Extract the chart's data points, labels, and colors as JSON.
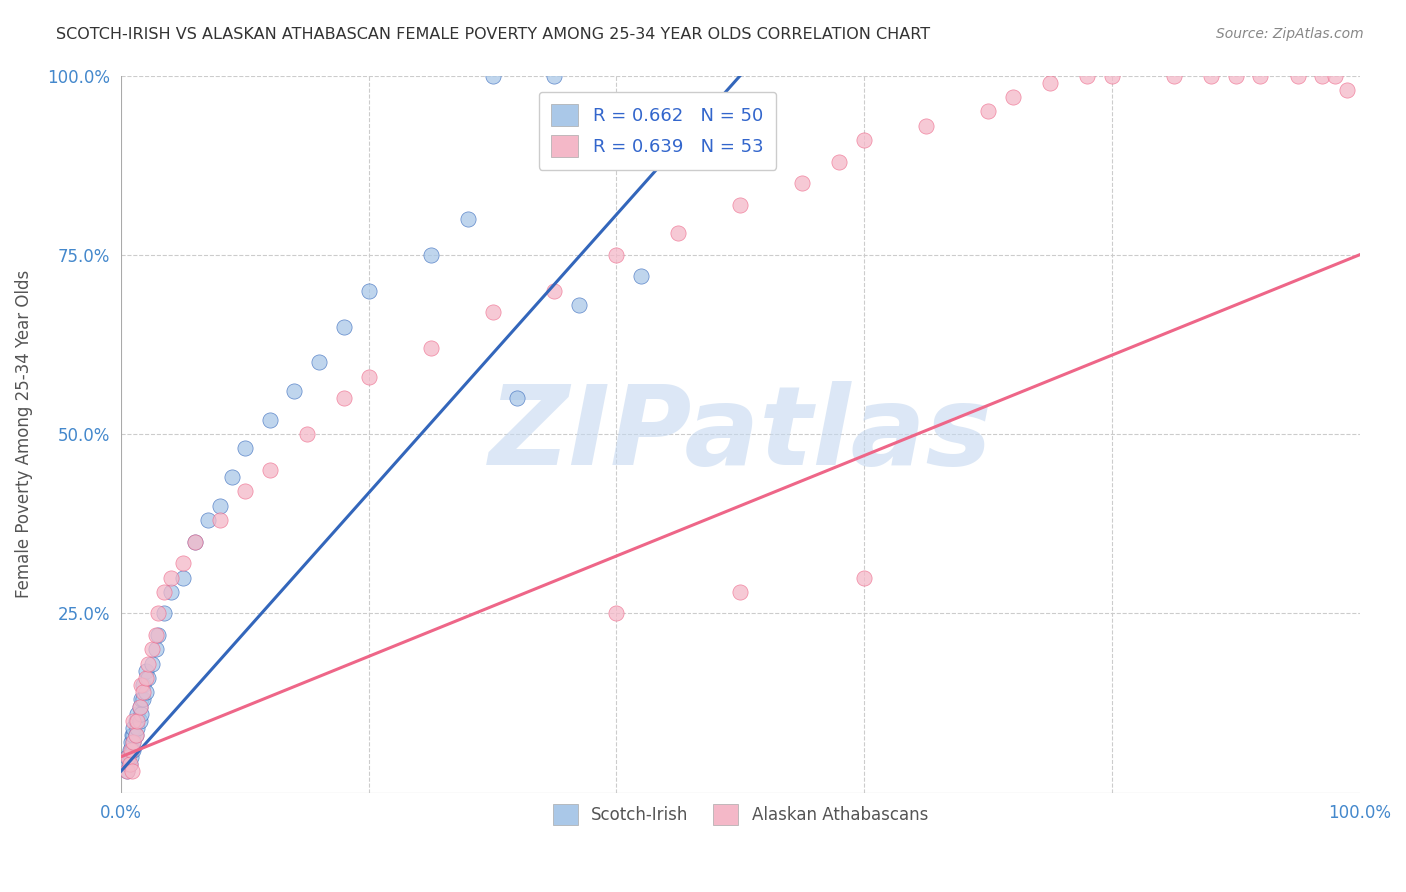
{
  "title": "SCOTCH-IRISH VS ALASKAN ATHABASCAN FEMALE POVERTY AMONG 25-34 YEAR OLDS CORRELATION CHART",
  "source": "Source: ZipAtlas.com",
  "ylabel": "Female Poverty Among 25-34 Year Olds",
  "xlim": [
    0,
    1.0
  ],
  "ylim": [
    0,
    1.0
  ],
  "watermark": "ZIPatlas",
  "blue_color": "#aac8e8",
  "pink_color": "#f4b8c8",
  "blue_line_color": "#3366bb",
  "pink_line_color": "#ee6688",
  "background_color": "#ffffff",
  "grid_color": "#cccccc",
  "watermark_color": "#c5d8f0",
  "title_color": "#333333",
  "axis_label_color": "#4488cc",
  "blue_scatter_x": [
    0.005,
    0.005,
    0.005,
    0.007,
    0.007,
    0.008,
    0.008,
    0.009,
    0.009,
    0.01,
    0.01,
    0.01,
    0.01,
    0.012,
    0.012,
    0.013,
    0.013,
    0.015,
    0.015,
    0.016,
    0.016,
    0.018,
    0.018,
    0.02,
    0.02,
    0.022,
    0.025,
    0.028,
    0.03,
    0.035,
    0.04,
    0.05,
    0.06,
    0.07,
    0.08,
    0.09,
    0.1,
    0.12,
    0.14,
    0.16,
    0.18,
    0.2,
    0.25,
    0.28,
    0.32,
    0.37,
    0.42,
    0.48,
    0.35,
    0.3
  ],
  "blue_scatter_y": [
    0.03,
    0.04,
    0.05,
    0.04,
    0.06,
    0.05,
    0.07,
    0.06,
    0.08,
    0.06,
    0.07,
    0.08,
    0.09,
    0.08,
    0.1,
    0.09,
    0.11,
    0.1,
    0.12,
    0.11,
    0.13,
    0.13,
    0.15,
    0.14,
    0.17,
    0.16,
    0.18,
    0.2,
    0.22,
    0.25,
    0.28,
    0.3,
    0.35,
    0.38,
    0.4,
    0.44,
    0.48,
    0.52,
    0.56,
    0.6,
    0.65,
    0.7,
    0.75,
    0.8,
    0.55,
    0.68,
    0.72,
    0.88,
    1.0,
    1.0
  ],
  "pink_scatter_x": [
    0.005,
    0.006,
    0.007,
    0.008,
    0.009,
    0.01,
    0.01,
    0.012,
    0.013,
    0.015,
    0.016,
    0.018,
    0.02,
    0.022,
    0.025,
    0.028,
    0.03,
    0.035,
    0.04,
    0.05,
    0.06,
    0.08,
    0.1,
    0.12,
    0.15,
    0.18,
    0.2,
    0.25,
    0.3,
    0.35,
    0.4,
    0.45,
    0.5,
    0.55,
    0.58,
    0.6,
    0.65,
    0.7,
    0.72,
    0.75,
    0.78,
    0.8,
    0.85,
    0.88,
    0.9,
    0.92,
    0.95,
    0.97,
    0.98,
    0.99,
    0.6,
    0.5,
    0.4
  ],
  "pink_scatter_y": [
    0.03,
    0.05,
    0.04,
    0.06,
    0.03,
    0.07,
    0.1,
    0.08,
    0.1,
    0.12,
    0.15,
    0.14,
    0.16,
    0.18,
    0.2,
    0.22,
    0.25,
    0.28,
    0.3,
    0.32,
    0.35,
    0.38,
    0.42,
    0.45,
    0.5,
    0.55,
    0.58,
    0.62,
    0.67,
    0.7,
    0.75,
    0.78,
    0.82,
    0.85,
    0.88,
    0.91,
    0.93,
    0.95,
    0.97,
    0.99,
    1.0,
    1.0,
    1.0,
    1.0,
    1.0,
    1.0,
    1.0,
    1.0,
    1.0,
    0.98,
    0.3,
    0.28,
    0.25
  ],
  "blue_line_x0": 0.0,
  "blue_line_x1": 0.5,
  "blue_line_y0": 0.03,
  "blue_line_y1": 1.0,
  "pink_line_x0": 0.0,
  "pink_line_x1": 1.0,
  "pink_line_y0": 0.05,
  "pink_line_y1": 0.75
}
